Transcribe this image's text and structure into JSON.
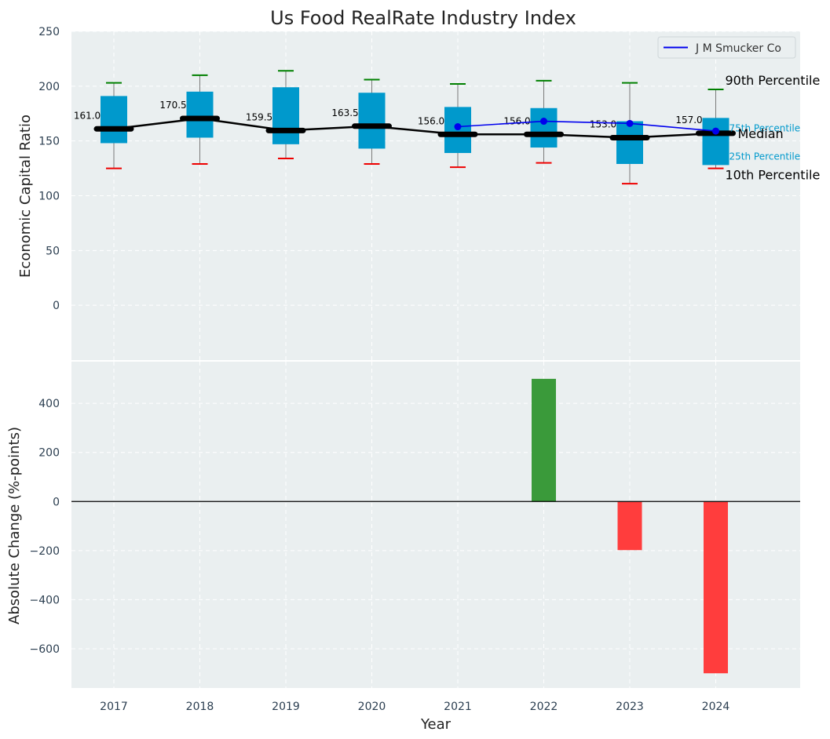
{
  "title": "Us Food RealRate Industry Index",
  "colors": {
    "panel_bg": "#eaeff0",
    "box": "#0099cc",
    "median": "#000000",
    "company": "#0000ee",
    "whisker_high": "#008000",
    "whisker_low": "#ee0000",
    "bar_pos": "#3a9a3a",
    "bar_neg": "#ff3d3d",
    "tick_text": "#2b3e50"
  },
  "chart_data": [
    {
      "type": "box",
      "panel": "top",
      "ylabel": "Economic Capital Ratio",
      "ylim": [
        -50,
        250
      ],
      "yticks": [
        0,
        50,
        100,
        150,
        200,
        250
      ],
      "categories": [
        "2017",
        "2018",
        "2019",
        "2020",
        "2021",
        "2022",
        "2023",
        "2024"
      ],
      "series": [
        {
          "name": "p10",
          "values": [
            125,
            129,
            134,
            129,
            126,
            130,
            111,
            125
          ]
        },
        {
          "name": "p25",
          "values": [
            148,
            153,
            147,
            143,
            139,
            144,
            129,
            128
          ]
        },
        {
          "name": "median",
          "values": [
            161.0,
            170.5,
            159.5,
            163.5,
            156.0,
            156.0,
            153.0,
            157.0
          ]
        },
        {
          "name": "p75",
          "values": [
            191,
            195,
            199,
            194,
            181,
            180,
            168,
            171
          ]
        },
        {
          "name": "p90",
          "values": [
            203,
            210,
            214,
            206,
            202,
            205,
            203,
            197
          ]
        },
        {
          "name": "J M Smucker Co",
          "values": [
            null,
            null,
            null,
            null,
            163,
            168,
            166,
            159
          ]
        }
      ],
      "median_labels": [
        "161.0",
        "170.5",
        "159.5",
        "163.5",
        "156.0",
        "156.0",
        "153.0",
        "157.0"
      ],
      "legend": {
        "position": "top-right",
        "entries": [
          "J M Smucker Co"
        ]
      },
      "annotations": {
        "p90": "90th Percentile",
        "p75": "75th Percentile",
        "median": "Median",
        "p25": "25th Percentile",
        "p10": "10th Percentile"
      },
      "grid": true
    },
    {
      "type": "bar",
      "panel": "bottom",
      "ylabel": "Absolute Change (%-points)",
      "xlabel": "Year",
      "ylim": [
        -760,
        570
      ],
      "yticks": [
        -600,
        -400,
        -200,
        0,
        200,
        400
      ],
      "ytick_labels": [
        "−600",
        "−400",
        "−200",
        "0",
        "200",
        "400"
      ],
      "categories": [
        "2017",
        "2018",
        "2019",
        "2020",
        "2021",
        "2022",
        "2023",
        "2024"
      ],
      "values": [
        null,
        null,
        null,
        null,
        null,
        500,
        -198,
        -700
      ],
      "grid": true
    }
  ]
}
